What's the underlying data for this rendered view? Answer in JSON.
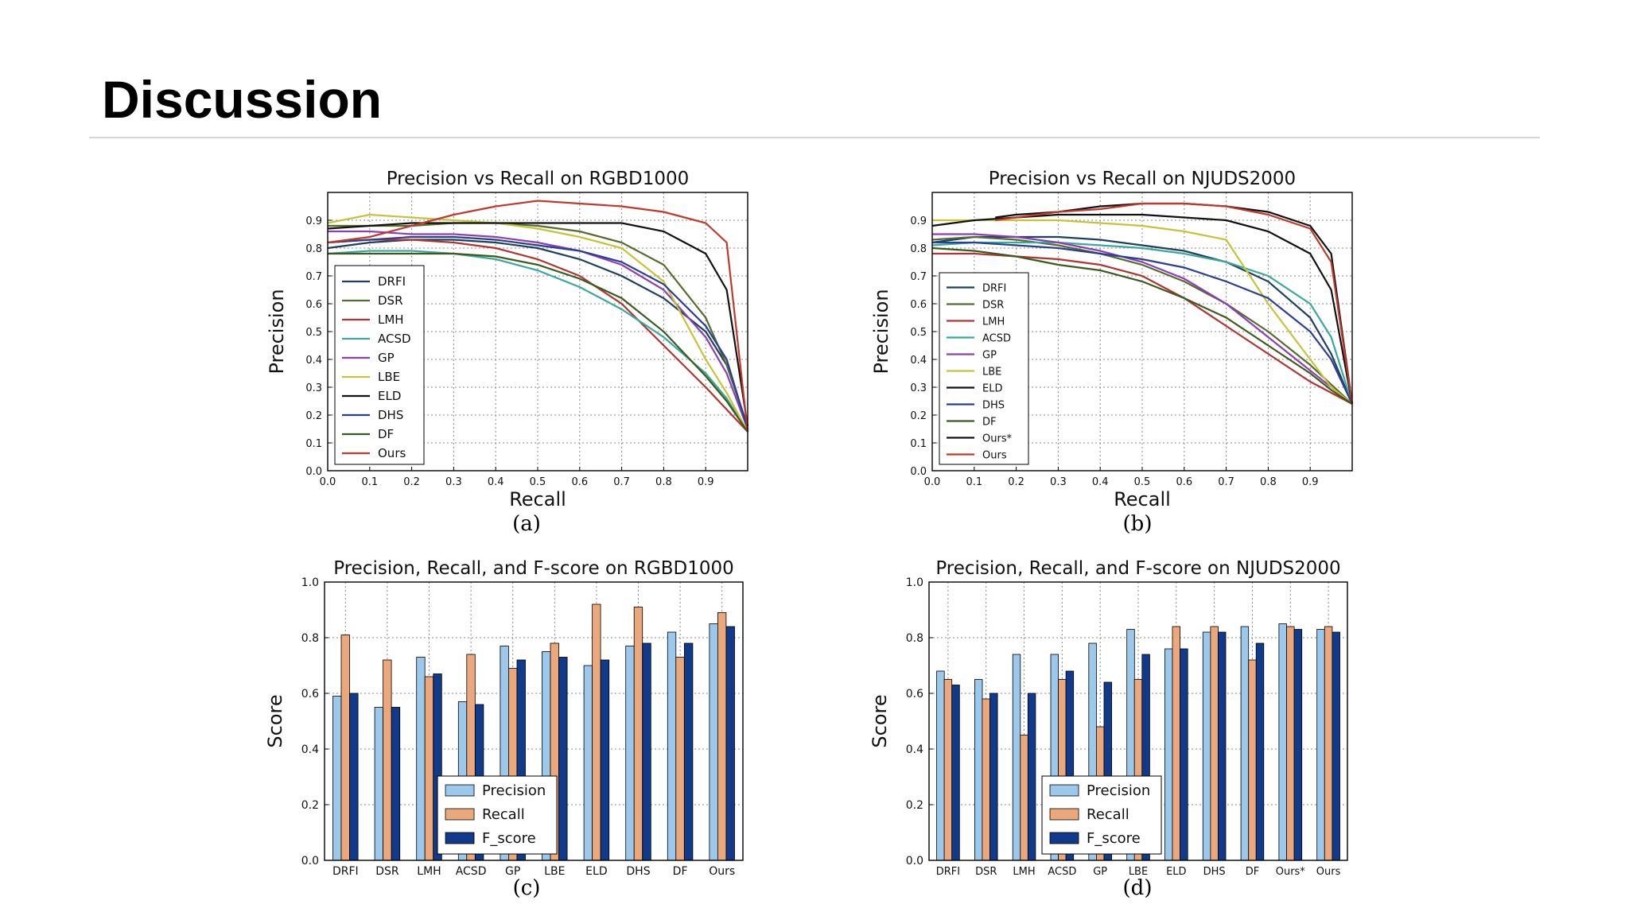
{
  "slide": {
    "title": "Discussion"
  },
  "colors": {
    "DRFI": "#1f3f5f",
    "DSR": "#556b2f",
    "LMH": "#b03434",
    "ACSD": "#3aa89a",
    "GP": "#8c3fb5",
    "LBE": "#c4c43a",
    "ELD": "#111111",
    "DHS": "#2a3f8f",
    "DF": "#3d5a1e",
    "Ours*": "#111111",
    "Ours": "#c0392b",
    "Precision": "#9cc8ec",
    "Recall": "#eba87c",
    "F_score": "#123a8a"
  },
  "charts": [
    {
      "caption": "(a)",
      "chart_data": {
        "type": "line",
        "title": "Precision vs Recall on RGBD1000",
        "xlabel": "Recall",
        "ylabel": "Precision",
        "xlim": [
          0,
          1
        ],
        "ylim": [
          0,
          1
        ],
        "xticks": [
          "0.0",
          "0.1",
          "0.2",
          "0.3",
          "0.4",
          "0.5",
          "0.6",
          "0.7",
          "0.8",
          "0.9"
        ],
        "yticks": [
          "0.0",
          "0.1",
          "0.2",
          "0.3",
          "0.4",
          "0.5",
          "0.6",
          "0.7",
          "0.8",
          "0.9"
        ],
        "grid": true,
        "legend_position": "lower-left",
        "series": [
          {
            "name": "DRFI",
            "x": [
              0,
              0.1,
              0.2,
              0.3,
              0.4,
              0.5,
              0.6,
              0.7,
              0.8,
              0.9,
              0.95,
              1.0
            ],
            "y": [
              0.8,
              0.82,
              0.83,
              0.83,
              0.82,
              0.8,
              0.76,
              0.7,
              0.62,
              0.5,
              0.38,
              0.16
            ]
          },
          {
            "name": "DSR",
            "x": [
              0,
              0.1,
              0.2,
              0.3,
              0.4,
              0.5,
              0.6,
              0.7,
              0.8,
              0.9,
              0.95,
              1.0
            ],
            "y": [
              0.88,
              0.88,
              0.88,
              0.89,
              0.89,
              0.88,
              0.86,
              0.82,
              0.74,
              0.55,
              0.38,
              0.16
            ]
          },
          {
            "name": "LMH",
            "x": [
              0,
              0.1,
              0.2,
              0.3,
              0.4,
              0.5,
              0.6,
              0.7,
              0.8,
              0.9,
              0.95,
              1.0
            ],
            "y": [
              0.82,
              0.83,
              0.83,
              0.82,
              0.8,
              0.76,
              0.7,
              0.6,
              0.45,
              0.3,
              0.22,
              0.14
            ]
          },
          {
            "name": "ACSD",
            "x": [
              0,
              0.1,
              0.2,
              0.3,
              0.4,
              0.5,
              0.6,
              0.7,
              0.8,
              0.9,
              0.95,
              1.0
            ],
            "y": [
              0.78,
              0.79,
              0.79,
              0.78,
              0.76,
              0.72,
              0.66,
              0.58,
              0.48,
              0.35,
              0.26,
              0.14
            ]
          },
          {
            "name": "GP",
            "x": [
              0,
              0.1,
              0.2,
              0.3,
              0.4,
              0.5,
              0.6,
              0.7,
              0.8,
              0.9,
              0.95,
              1.0
            ],
            "y": [
              0.86,
              0.86,
              0.85,
              0.85,
              0.84,
              0.82,
              0.79,
              0.74,
              0.65,
              0.48,
              0.35,
              0.15
            ]
          },
          {
            "name": "LBE",
            "x": [
              0,
              0.1,
              0.2,
              0.3,
              0.4,
              0.5,
              0.6,
              0.7,
              0.8,
              0.9,
              0.95,
              1.0
            ],
            "y": [
              0.89,
              0.92,
              0.91,
              0.9,
              0.89,
              0.87,
              0.84,
              0.8,
              0.68,
              0.4,
              0.28,
              0.14
            ]
          },
          {
            "name": "ELD",
            "x": [
              0,
              0.1,
              0.2,
              0.3,
              0.4,
              0.5,
              0.6,
              0.7,
              0.8,
              0.9,
              0.95,
              1.0
            ],
            "y": [
              0.87,
              0.88,
              0.89,
              0.89,
              0.89,
              0.89,
              0.89,
              0.89,
              0.86,
              0.78,
              0.65,
              0.16
            ]
          },
          {
            "name": "DHS",
            "x": [
              0,
              0.1,
              0.2,
              0.3,
              0.4,
              0.5,
              0.6,
              0.7,
              0.8,
              0.9,
              0.95,
              1.0
            ],
            "y": [
              0.82,
              0.83,
              0.84,
              0.84,
              0.83,
              0.81,
              0.79,
              0.75,
              0.67,
              0.52,
              0.4,
              0.15
            ]
          },
          {
            "name": "DF",
            "x": [
              0,
              0.1,
              0.2,
              0.3,
              0.4,
              0.5,
              0.6,
              0.7,
              0.8,
              0.9,
              0.95,
              1.0
            ],
            "y": [
              0.78,
              0.78,
              0.78,
              0.78,
              0.77,
              0.74,
              0.69,
              0.62,
              0.5,
              0.34,
              0.25,
              0.14
            ]
          },
          {
            "name": "Ours",
            "x": [
              0,
              0.1,
              0.2,
              0.3,
              0.4,
              0.5,
              0.6,
              0.7,
              0.8,
              0.9,
              0.95,
              1.0
            ],
            "y": [
              0.82,
              0.84,
              0.88,
              0.92,
              0.95,
              0.97,
              0.96,
              0.95,
              0.93,
              0.89,
              0.82,
              0.14
            ]
          }
        ]
      }
    },
    {
      "caption": "(b)",
      "chart_data": {
        "type": "line",
        "title": "Precision vs Recall on NJUDS2000",
        "xlabel": "Recall",
        "ylabel": "Precision",
        "xlim": [
          0,
          1
        ],
        "ylim": [
          0,
          1
        ],
        "xticks": [
          "0.0",
          "0.1",
          "0.2",
          "0.3",
          "0.4",
          "0.5",
          "0.6",
          "0.7",
          "0.8",
          "0.9"
        ],
        "yticks": [
          "0.0",
          "0.1",
          "0.2",
          "0.3",
          "0.4",
          "0.5",
          "0.6",
          "0.7",
          "0.8",
          "0.9"
        ],
        "grid": true,
        "legend_position": "lower-left",
        "series": [
          {
            "name": "DRFI",
            "x": [
              0,
              0.1,
              0.2,
              0.3,
              0.4,
              0.5,
              0.6,
              0.7,
              0.8,
              0.9,
              0.95,
              1.0
            ],
            "y": [
              0.82,
              0.84,
              0.84,
              0.84,
              0.83,
              0.81,
              0.79,
              0.75,
              0.68,
              0.55,
              0.42,
              0.24
            ]
          },
          {
            "name": "DSR",
            "x": [
              0,
              0.1,
              0.2,
              0.3,
              0.4,
              0.5,
              0.6,
              0.7,
              0.8,
              0.9,
              0.95,
              1.0
            ],
            "y": [
              0.83,
              0.84,
              0.83,
              0.81,
              0.78,
              0.74,
              0.68,
              0.6,
              0.5,
              0.38,
              0.31,
              0.24
            ]
          },
          {
            "name": "LMH",
            "x": [
              0,
              0.1,
              0.2,
              0.3,
              0.4,
              0.5,
              0.6,
              0.7,
              0.8,
              0.9,
              0.95,
              1.0
            ],
            "y": [
              0.78,
              0.78,
              0.77,
              0.76,
              0.74,
              0.7,
              0.62,
              0.52,
              0.42,
              0.32,
              0.28,
              0.24
            ]
          },
          {
            "name": "ACSD",
            "x": [
              0,
              0.1,
              0.2,
              0.3,
              0.4,
              0.5,
              0.6,
              0.7,
              0.8,
              0.9,
              0.95,
              1.0
            ],
            "y": [
              0.81,
              0.82,
              0.82,
              0.82,
              0.81,
              0.8,
              0.78,
              0.75,
              0.7,
              0.6,
              0.48,
              0.24
            ]
          },
          {
            "name": "GP",
            "x": [
              0,
              0.1,
              0.2,
              0.3,
              0.4,
              0.5,
              0.6,
              0.7,
              0.8,
              0.9,
              0.95,
              1.0
            ],
            "y": [
              0.85,
              0.85,
              0.84,
              0.82,
              0.79,
              0.75,
              0.69,
              0.6,
              0.48,
              0.36,
              0.3,
              0.24
            ]
          },
          {
            "name": "LBE",
            "x": [
              0,
              0.1,
              0.2,
              0.3,
              0.4,
              0.5,
              0.6,
              0.7,
              0.8,
              0.9,
              0.95,
              1.0
            ],
            "y": [
              0.9,
              0.9,
              0.9,
              0.9,
              0.89,
              0.88,
              0.86,
              0.83,
              0.6,
              0.4,
              0.3,
              0.24
            ]
          },
          {
            "name": "ELD",
            "x": [
              0,
              0.1,
              0.2,
              0.3,
              0.4,
              0.5,
              0.6,
              0.7,
              0.8,
              0.9,
              0.95,
              1.0
            ],
            "y": [
              0.88,
              0.9,
              0.91,
              0.92,
              0.92,
              0.92,
              0.91,
              0.9,
              0.86,
              0.78,
              0.65,
              0.24
            ]
          },
          {
            "name": "DHS",
            "x": [
              0,
              0.1,
              0.2,
              0.3,
              0.4,
              0.5,
              0.6,
              0.7,
              0.8,
              0.9,
              0.95,
              1.0
            ],
            "y": [
              0.82,
              0.82,
              0.81,
              0.8,
              0.78,
              0.76,
              0.73,
              0.68,
              0.62,
              0.5,
              0.4,
              0.24
            ]
          },
          {
            "name": "DF",
            "x": [
              0,
              0.1,
              0.2,
              0.3,
              0.4,
              0.5,
              0.6,
              0.7,
              0.8,
              0.9,
              0.95,
              1.0
            ],
            "y": [
              0.8,
              0.79,
              0.77,
              0.74,
              0.72,
              0.68,
              0.62,
              0.55,
              0.45,
              0.35,
              0.29,
              0.24
            ]
          },
          {
            "name": "Ours*",
            "x": [
              0.15,
              0.2,
              0.3,
              0.4,
              0.5,
              0.6,
              0.7,
              0.8,
              0.9,
              0.95,
              1.0
            ],
            "y": [
              0.91,
              0.92,
              0.93,
              0.95,
              0.96,
              0.96,
              0.95,
              0.93,
              0.88,
              0.78,
              0.24
            ]
          },
          {
            "name": "Ours",
            "x": [
              0.15,
              0.2,
              0.3,
              0.4,
              0.5,
              0.6,
              0.7,
              0.8,
              0.9,
              0.95,
              1.0
            ],
            "y": [
              0.9,
              0.91,
              0.93,
              0.94,
              0.96,
              0.96,
              0.95,
              0.92,
              0.87,
              0.75,
              0.24
            ]
          }
        ]
      }
    },
    {
      "caption": "(c)",
      "chart_data": {
        "type": "bar",
        "title": "Precision, Recall, and F-score on RGBD1000",
        "xlabel": "",
        "ylabel": "Score",
        "ylim": [
          0,
          1
        ],
        "yticks": [
          "0.0",
          "0.2",
          "0.4",
          "0.6",
          "0.8",
          "1.0"
        ],
        "grid": true,
        "legend_position": "lower-center",
        "categories": [
          "DRFI",
          "DSR",
          "LMH",
          "ACSD",
          "GP",
          "LBE",
          "ELD",
          "DHS",
          "DF",
          "Ours"
        ],
        "series": [
          {
            "name": "Precision",
            "values": [
              0.59,
              0.55,
              0.73,
              0.57,
              0.77,
              0.75,
              0.7,
              0.77,
              0.82,
              0.85
            ]
          },
          {
            "name": "Recall",
            "values": [
              0.81,
              0.72,
              0.66,
              0.74,
              0.69,
              0.78,
              0.92,
              0.91,
              0.73,
              0.89
            ]
          },
          {
            "name": "F_score",
            "values": [
              0.6,
              0.55,
              0.67,
              0.56,
              0.72,
              0.73,
              0.72,
              0.78,
              0.78,
              0.84
            ]
          }
        ]
      }
    },
    {
      "caption": "(d)",
      "chart_data": {
        "type": "bar",
        "title": "Precision, Recall, and F-score on NJUDS2000",
        "xlabel": "",
        "ylabel": "Score",
        "ylim": [
          0,
          1
        ],
        "yticks": [
          "0.0",
          "0.2",
          "0.4",
          "0.6",
          "0.8",
          "1.0"
        ],
        "grid": true,
        "legend_position": "lower-center",
        "categories": [
          "DRFI",
          "DSR",
          "LMH",
          "ACSD",
          "GP",
          "LBE",
          "ELD",
          "DHS",
          "DF",
          "Ours*",
          "Ours"
        ],
        "series": [
          {
            "name": "Precision",
            "values": [
              0.68,
              0.65,
              0.74,
              0.74,
              0.78,
              0.83,
              0.76,
              0.82,
              0.84,
              0.85,
              0.83
            ]
          },
          {
            "name": "Recall",
            "values": [
              0.65,
              0.58,
              0.45,
              0.65,
              0.48,
              0.65,
              0.84,
              0.84,
              0.72,
              0.84,
              0.84
            ]
          },
          {
            "name": "F_score",
            "values": [
              0.63,
              0.6,
              0.6,
              0.68,
              0.64,
              0.74,
              0.76,
              0.82,
              0.78,
              0.83,
              0.82
            ]
          }
        ]
      }
    }
  ]
}
